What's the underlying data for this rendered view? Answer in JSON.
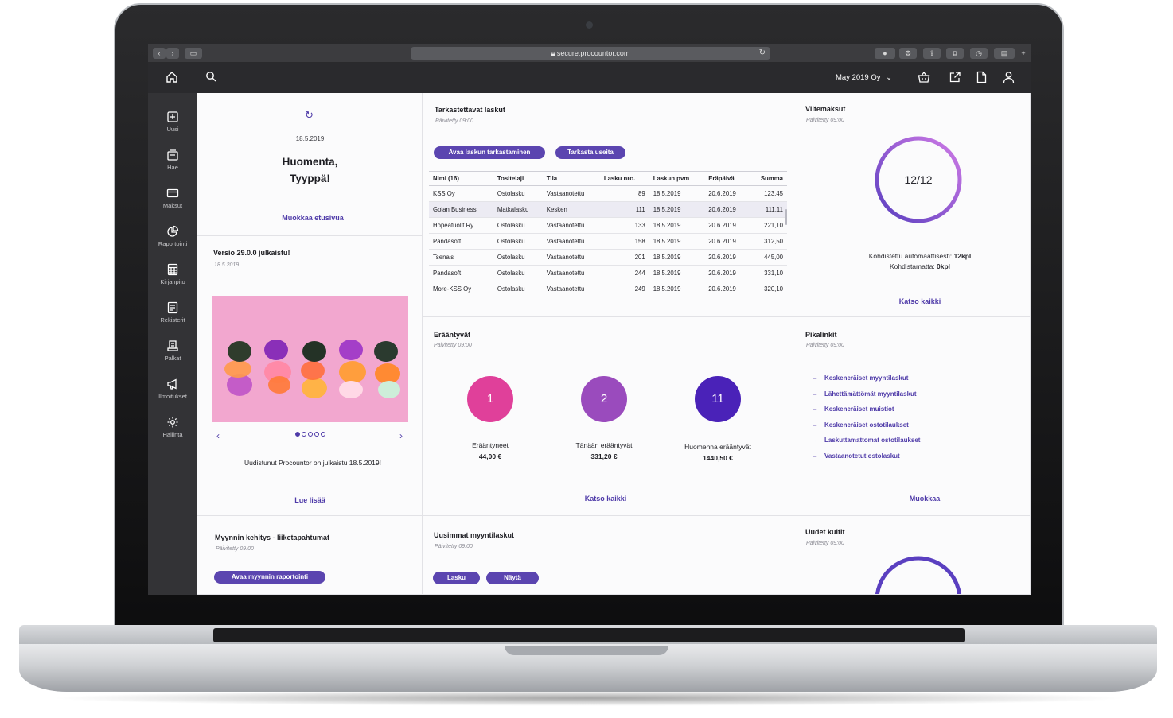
{
  "browser": {
    "url": "secure.procountor.com"
  },
  "header": {
    "company": "May 2019 Oy"
  },
  "sidebar": {
    "items": [
      {
        "label": "Uusi"
      },
      {
        "label": "Hae"
      },
      {
        "label": "Maksut"
      },
      {
        "label": "Raportointi"
      },
      {
        "label": "Kirjanpito"
      },
      {
        "label": "Rekisterit"
      },
      {
        "label": "Palkat"
      },
      {
        "label": "Ilmoitukset"
      },
      {
        "label": "Hallinta"
      }
    ]
  },
  "greeting": {
    "date": "18.5.2019",
    "line1": "Huomenta,",
    "line2": "Tyyppä!",
    "edit_link": "Muokkaa etusivua"
  },
  "news": {
    "title": "Versio 29.0.0 julkaistu!",
    "date": "18.5.2019",
    "caption": "Uudistunut Procountor on julkaistu 18.5.2019!",
    "read_more": "Lue lisää",
    "carousel_dots": 5,
    "active_dot": 0
  },
  "invoices": {
    "title": "Tarkastettavat laskut",
    "updated": "Päivitetty 09:00",
    "btn_open": "Avaa laskun tarkastaminen",
    "btn_multi": "Tarkasta useita",
    "columns": [
      "Nimi (16)",
      "Tositelaji",
      "Tila",
      "Lasku nro.",
      "Laskun pvm",
      "Eräpäivä",
      "Summa"
    ],
    "rows": [
      [
        "KSS Oy",
        "Ostolasku",
        "Vastaanotettu",
        "89",
        "18.5.2019",
        "20.6.2019",
        "123,45"
      ],
      [
        "Golan Business",
        "Matkalasku",
        "Kesken",
        "111",
        "18.5.2019",
        "20.6.2019",
        "111,11"
      ],
      [
        "Hopeatuolit Ry",
        "Ostolasku",
        "Vastaanotettu",
        "133",
        "18.5.2019",
        "20.6.2019",
        "221,10"
      ],
      [
        "Pandasoft",
        "Ostolasku",
        "Vastaanotettu",
        "158",
        "18.5.2019",
        "20.6.2019",
        "312,50"
      ],
      [
        "Tsena's",
        "Ostolasku",
        "Vastaanotettu",
        "201",
        "18.5.2019",
        "20.6.2019",
        "445,00"
      ],
      [
        "Pandasoft",
        "Ostolasku",
        "Vastaanotettu",
        "244",
        "18.5.2019",
        "20.6.2019",
        "331,10"
      ],
      [
        "More-KSS Oy",
        "Ostolasku",
        "Vastaanotettu",
        "249",
        "18.5.2019",
        "20.6.2019",
        "320,10"
      ]
    ]
  },
  "payments": {
    "title": "Viitemaksut",
    "updated": "Päivitetty 09:00",
    "ratio": "12/12",
    "progress": 1.0,
    "auto_label": "Kohdistettu automaattisesti:",
    "auto_value": "12kpl",
    "unmatched_label": "Kohdistamatta:",
    "unmatched_value": "0kpl",
    "see_all": "Katso kaikki"
  },
  "due": {
    "title": "Erääntyvät",
    "updated": "Päivitetty 09:00",
    "items": [
      {
        "count": "1",
        "label": "Erääntyneet",
        "sum": "44,00 €",
        "color": "#e0409a"
      },
      {
        "count": "2",
        "label": "Tänään erääntyvät",
        "sum": "331,20 €",
        "color": "#9a4bbd"
      },
      {
        "count": "11",
        "label": "Huomenna erääntyvät",
        "sum": "1440,50 €",
        "color": "#4a22b8"
      }
    ],
    "see_all": "Katso kaikki"
  },
  "quicklinks": {
    "title": "Pikalinkit",
    "updated": "Päivitetty 09:00",
    "links": [
      "Keskeneräiset myyntilaskut",
      "Lähettämättömät myyntilaskut",
      "Keskeneräiset muistiot",
      "Keskeneräiset ostotilaukset",
      "Laskuttamattomat ostotilaukset",
      "Vastaanotetut ostolaskut"
    ],
    "edit": "Muokkaa"
  },
  "sales": {
    "title": "Myynnin kehitys - liiketapahtumat",
    "updated": "Päivitetty 09:00",
    "btn": "Avaa myynnin raportointi"
  },
  "latest_sales": {
    "title": "Uusimmat myyntilaskut",
    "updated": "Päivitetty 09:00",
    "btn_invoice": "Lasku",
    "btn_show": "Näytä"
  },
  "receipts": {
    "title": "Uudet kuitit",
    "updated": "Päivitetty 09:00"
  },
  "colors": {
    "accent": "#5b45b0",
    "link": "#4e3aa8",
    "sidebar": "#333336",
    "header": "#2a2a2d"
  }
}
